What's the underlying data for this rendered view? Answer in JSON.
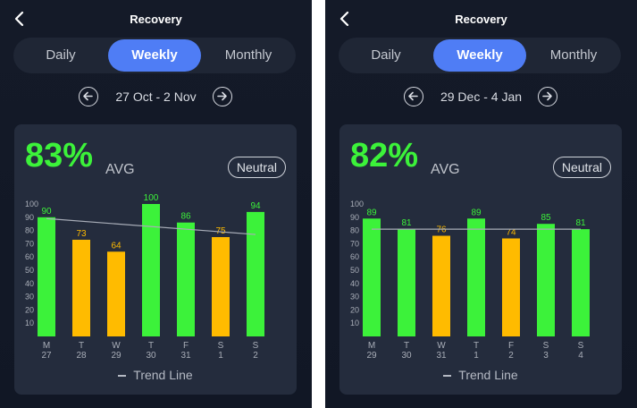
{
  "colors": {
    "good": "#3cf23a",
    "neutral": "#ffbb00",
    "accent": "#4f7df5",
    "trend": "#a8adb8"
  },
  "panels": [
    {
      "title": "Recovery",
      "back_icon": "chevron-left-icon",
      "tabs": [
        {
          "label": "Daily"
        },
        {
          "label": "Weekly"
        },
        {
          "label": "Monthly"
        }
      ],
      "active_tab": "Weekly",
      "date_range": "27 Oct - 2 Nov",
      "avg_value": "83%",
      "avg_label": "AVG",
      "badge": "Neutral",
      "trend_label": "Trend Line",
      "chart_data": {
        "type": "bar",
        "categories": [
          "M\n27",
          "T\n28",
          "W\n29",
          "T\n30",
          "F\n31",
          "S\n1",
          "S\n2"
        ],
        "day_letters": [
          "M",
          "T",
          "W",
          "T",
          "F",
          "S",
          "S"
        ],
        "day_numbers": [
          "27",
          "28",
          "29",
          "30",
          "31",
          "1",
          "2"
        ],
        "values": [
          90,
          73,
          64,
          100,
          86,
          75,
          94
        ],
        "status": [
          "good",
          "neutral",
          "neutral",
          "good",
          "good",
          "neutral",
          "good"
        ],
        "ylim": [
          0,
          100
        ],
        "yticks": [
          10,
          20,
          30,
          40,
          50,
          60,
          70,
          80,
          90,
          100
        ],
        "trend_line": [
          89,
          77
        ],
        "grid": false
      }
    },
    {
      "title": "Recovery",
      "back_icon": "chevron-left-icon",
      "tabs": [
        {
          "label": "Daily"
        },
        {
          "label": "Weekly"
        },
        {
          "label": "Monthly"
        }
      ],
      "active_tab": "Weekly",
      "date_range": "29 Dec - 4 Jan",
      "avg_value": "82%",
      "avg_label": "AVG",
      "badge": "Neutral",
      "trend_label": "Trend Line",
      "chart_data": {
        "type": "bar",
        "categories": [
          "M\n29",
          "T\n30",
          "W\n31",
          "T\n1",
          "F\n2",
          "S\n3",
          "S\n4"
        ],
        "day_letters": [
          "M",
          "T",
          "W",
          "T",
          "F",
          "S",
          "S"
        ],
        "day_numbers": [
          "29",
          "30",
          "31",
          "1",
          "2",
          "3",
          "4"
        ],
        "values": [
          89,
          81,
          76,
          89,
          74,
          85,
          81
        ],
        "status": [
          "good",
          "good",
          "neutral",
          "good",
          "neutral",
          "good",
          "good"
        ],
        "ylim": [
          0,
          100
        ],
        "yticks": [
          10,
          20,
          30,
          40,
          50,
          60,
          70,
          80,
          90,
          100
        ],
        "trend_line": [
          81,
          81
        ],
        "grid": false
      }
    }
  ]
}
